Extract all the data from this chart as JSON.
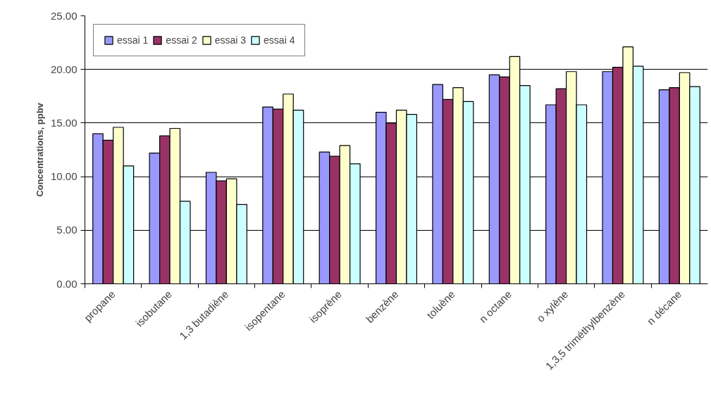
{
  "chart_data": {
    "type": "bar",
    "ylabel": "Concentrations, ppbv",
    "categories": [
      "propane",
      "isobutane",
      "1,3 butadiène",
      "isopentane",
      "isoprène",
      "benzène",
      "toluène",
      "n octane",
      "o xylène",
      "1,3,5 triméthylbenzène",
      "n décane"
    ],
    "series": [
      {
        "name": "essai 1",
        "color": "#9999ff",
        "values": [
          14.0,
          12.2,
          10.4,
          16.5,
          12.3,
          16.0,
          18.6,
          19.5,
          16.7,
          19.8,
          18.1
        ]
      },
      {
        "name": "essai 2",
        "color": "#993366",
        "values": [
          13.4,
          13.8,
          9.6,
          16.3,
          11.9,
          15.0,
          17.2,
          19.3,
          18.2,
          20.2,
          18.3
        ]
      },
      {
        "name": "essai 3",
        "color": "#ffffcc",
        "values": [
          14.6,
          14.5,
          9.8,
          17.7,
          12.9,
          16.2,
          18.3,
          21.2,
          19.8,
          22.1,
          19.7
        ]
      },
      {
        "name": "essai 4",
        "color": "#ccffff",
        "values": [
          11.0,
          7.7,
          7.4,
          16.2,
          11.2,
          15.8,
          17.0,
          18.5,
          16.7,
          20.3,
          18.4
        ]
      }
    ],
    "ylim": [
      0,
      25
    ],
    "yticks": [
      {
        "value": 0,
        "label": "0.00"
      },
      {
        "value": 5,
        "label": "5.00"
      },
      {
        "value": 10,
        "label": "10.00"
      },
      {
        "value": 15,
        "label": "15.00"
      },
      {
        "value": 20,
        "label": "20.00"
      },
      {
        "value": 25,
        "label": "25.00"
      }
    ],
    "grid": "y",
    "legend": "top left"
  }
}
